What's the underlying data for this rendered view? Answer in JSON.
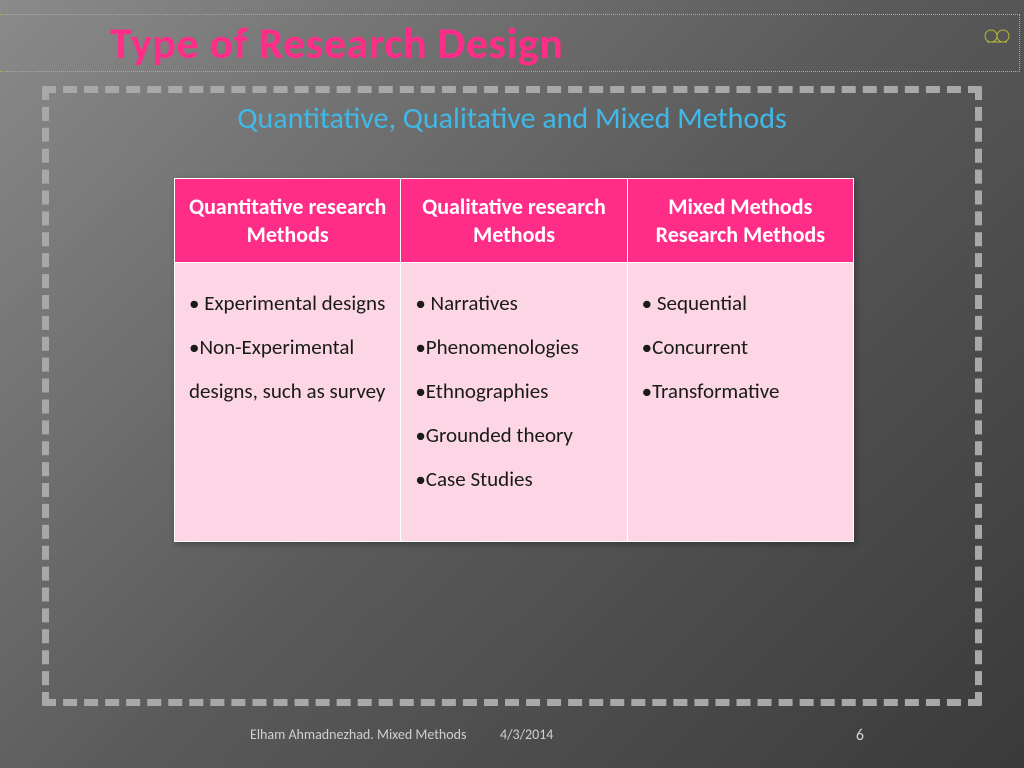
{
  "slide": {
    "title": "Type of Research Design",
    "subtitle": "Quantitative, Qualitative and Mixed Methods",
    "title_color": "#ff2d87",
    "subtitle_color": "#3fb9e8",
    "title_fontsize": 44,
    "subtitle_fontsize": 30,
    "background_gradient": [
      "#8a8a8a",
      "#5a5a5a",
      "#3a3a3a"
    ],
    "dashed_border_color": "#a8a8a8",
    "dotted_border_color": "#b8b838"
  },
  "table": {
    "header_bg": "#ff2d87",
    "header_fg": "#ffffff",
    "cell_bg": "#fcd6e5",
    "cell_fg": "#1a1a1a",
    "border_color": "#ffffff",
    "header_fontsize": 22,
    "cell_fontsize": 21,
    "columns": [
      "Quantitative research Methods",
      "Qualitative research Methods",
      "Mixed Methods Research Methods"
    ],
    "cells": [
      "• Experimental designs\n•Non-Experimental designs, such as survey",
      "• Narratives\n•Phenomenologies\n•Ethnographies\n•Grounded theory\n•Case Studies",
      "• Sequential\n•Concurrent\n•Transformative"
    ]
  },
  "footer": {
    "author": "Elham Ahmadnezhad. Mixed Methods",
    "date": "4/3/2014",
    "page": "6",
    "text_color": "#d0d0d0"
  }
}
